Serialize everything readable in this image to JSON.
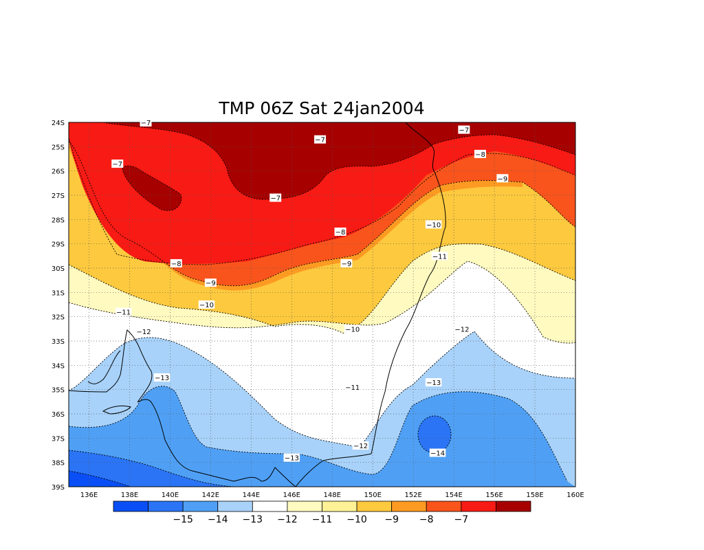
{
  "title": "TMP 06Z Sat 24jan2004",
  "map": {
    "lon_labels": [
      "136E",
      "138E",
      "140E",
      "142E",
      "144E",
      "146E",
      "148E",
      "150E",
      "152E",
      "154E",
      "156E",
      "158E",
      "160E"
    ],
    "lat_labels": [
      "24S",
      "25S",
      "26S",
      "27S",
      "28S",
      "29S",
      "30S",
      "31S",
      "32S",
      "33S",
      "34S",
      "35S",
      "36S",
      "37S",
      "38S",
      "39S"
    ],
    "lon_range": [
      135,
      160
    ],
    "lat_range": [
      -39,
      -24
    ],
    "grid": true
  },
  "contour_labels": [
    {
      "text": "−7",
      "lon": 138.8,
      "lat": -24.0
    },
    {
      "text": "−7",
      "lon": 154.5,
      "lat": -24.3
    },
    {
      "text": "−7",
      "lon": 147.4,
      "lat": -24.7
    },
    {
      "text": "−8",
      "lon": 155.3,
      "lat": -25.3
    },
    {
      "text": "−7",
      "lon": 137.4,
      "lat": -25.7
    },
    {
      "text": "−9",
      "lon": 156.4,
      "lat": -26.3
    },
    {
      "text": "−7",
      "lon": 145.2,
      "lat": -27.1
    },
    {
      "text": "−10",
      "lon": 153.0,
      "lat": -28.2
    },
    {
      "text": "−8",
      "lon": 148.4,
      "lat": -28.5
    },
    {
      "text": "−11",
      "lon": 153.3,
      "lat": -29.5
    },
    {
      "text": "−8",
      "lon": 140.3,
      "lat": -29.8
    },
    {
      "text": "−9",
      "lon": 148.7,
      "lat": -29.8
    },
    {
      "text": "−9",
      "lon": 142.0,
      "lat": -30.6
    },
    {
      "text": "−10",
      "lon": 141.8,
      "lat": -31.5
    },
    {
      "text": "−11",
      "lon": 137.7,
      "lat": -31.8
    },
    {
      "text": "−10",
      "lon": 149.0,
      "lat": -32.5
    },
    {
      "text": "−12",
      "lon": 154.4,
      "lat": -32.5
    },
    {
      "text": "−12",
      "lon": 138.7,
      "lat": -32.6
    },
    {
      "text": "−13",
      "lon": 139.6,
      "lat": -34.5
    },
    {
      "text": "−13",
      "lon": 153.0,
      "lat": -34.7
    },
    {
      "text": "−11",
      "lon": 149.0,
      "lat": -34.9
    },
    {
      "text": "−12",
      "lon": 149.4,
      "lat": -37.3
    },
    {
      "text": "−14",
      "lon": 153.2,
      "lat": -37.6
    },
    {
      "text": "−13",
      "lon": 146.0,
      "lat": -37.8
    }
  ],
  "colorbar": {
    "colors": [
      "#0a4ff5",
      "#2a74f5",
      "#4fa0f5",
      "#a8d2fa",
      "#ffffff",
      "#fffac0",
      "#fff296",
      "#fdc93e",
      "#fd9a22",
      "#f9541c",
      "#f81a14",
      "#a60000"
    ],
    "labels": [
      "−15",
      "−14",
      "−13",
      "−12",
      "−11",
      "−10",
      "−9",
      "−8",
      "−7"
    ]
  }
}
